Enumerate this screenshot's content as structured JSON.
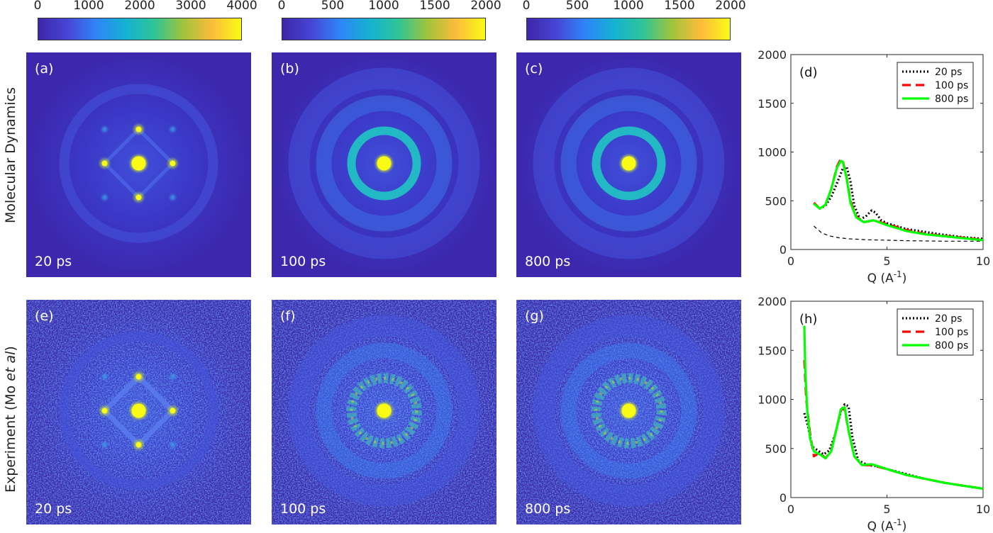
{
  "row_labels": {
    "top": "Molecular Dynamics",
    "bottom_main": "Experiment (Mo ",
    "bottom_italic": "et al",
    "bottom_end": ")"
  },
  "colorbars": [
    {
      "ticks": [
        "0",
        "1000",
        "2000",
        "3000",
        "4000"
      ]
    },
    {
      "ticks": [
        "0",
        "500",
        "1000",
        "1500",
        "2000"
      ]
    },
    {
      "ticks": [
        "0",
        "500",
        "1000",
        "1500",
        "2000"
      ]
    }
  ],
  "panels": [
    {
      "label": "(a)",
      "time": "20 ps",
      "kind": "bcc",
      "noise": false
    },
    {
      "label": "(b)",
      "time": "100 ps",
      "kind": "ring",
      "noise": false
    },
    {
      "label": "(c)",
      "time": "800 ps",
      "kind": "ring",
      "noise": false
    },
    {
      "label": "(e)",
      "time": "20 ps",
      "kind": "bcc",
      "noise": true
    },
    {
      "label": "(f)",
      "time": "100 ps",
      "kind": "ring",
      "noise": true
    },
    {
      "label": "(g)",
      "time": "800 ps",
      "kind": "ring",
      "noise": true
    }
  ],
  "colors": {
    "colormap": [
      "#3e26a8",
      "#4745d6",
      "#2e85f8",
      "#15b1d1",
      "#2ec597",
      "#9fc43c",
      "#fcbc3b",
      "#f9fb15"
    ],
    "series_20ps": "#000000",
    "series_100ps": "#ff0000",
    "series_800ps": "#00ff00"
  },
  "chart_data": [
    {
      "type": "line",
      "panel_label": "(d)",
      "xlabel": "Q (A",
      "xlabel_sup": "-1",
      "xlabel_end": ")",
      "xlim": [
        0,
        10
      ],
      "ylim": [
        0,
        2000
      ],
      "xticks": [
        "0",
        "5",
        "10"
      ],
      "yticks": [
        "0",
        "500",
        "1000",
        "1500",
        "2000"
      ],
      "legend_position": "top-right",
      "series": [
        {
          "name": "20 ps",
          "style": "dotted",
          "x": [
            1.2,
            1.5,
            1.8,
            2.1,
            2.4,
            2.7,
            2.9,
            3.1,
            3.3,
            3.6,
            3.9,
            4.2,
            4.4,
            4.7,
            5.0,
            6.0,
            7.0,
            8.0,
            9.0,
            10.0
          ],
          "y": [
            470,
            420,
            450,
            540,
            680,
            830,
            850,
            700,
            450,
            310,
            340,
            400,
            380,
            300,
            270,
            210,
            180,
            150,
            125,
            110
          ]
        },
        {
          "name": "100 ps",
          "style": "dashed",
          "x": [
            1.2,
            1.5,
            1.8,
            2.1,
            2.4,
            2.6,
            2.7,
            2.9,
            3.1,
            3.4,
            3.8,
            4.3,
            5.0,
            6.0,
            7.0,
            8.0,
            9.0,
            10.0
          ],
          "y": [
            480,
            420,
            460,
            620,
            850,
            930,
            910,
            740,
            500,
            340,
            280,
            300,
            260,
            200,
            160,
            140,
            120,
            100
          ]
        },
        {
          "name": "800 ps",
          "style": "solid",
          "x": [
            1.2,
            1.5,
            1.8,
            2.1,
            2.4,
            2.6,
            2.7,
            2.9,
            3.1,
            3.4,
            3.8,
            4.3,
            5.0,
            6.0,
            7.0,
            8.0,
            9.0,
            10.0
          ],
          "y": [
            470,
            420,
            460,
            620,
            840,
            910,
            900,
            730,
            480,
            330,
            280,
            300,
            250,
            190,
            155,
            135,
            115,
            95
          ]
        },
        {
          "name": "",
          "style": "thin-dashed",
          "x": [
            1.2,
            1.6,
            2.0,
            2.5,
            3.0,
            4.0,
            5.0,
            6.0,
            8.0,
            10.0
          ],
          "y": [
            240,
            170,
            140,
            120,
            110,
            100,
            95,
            90,
            85,
            85
          ]
        }
      ]
    },
    {
      "type": "line",
      "panel_label": "(h)",
      "xlabel": "Q (A",
      "xlabel_sup": "-1",
      "xlabel_end": ")",
      "xlim": [
        0,
        10
      ],
      "ylim": [
        0,
        2000
      ],
      "xticks": [
        "0",
        "5",
        "10"
      ],
      "yticks": [
        "0",
        "500",
        "1000",
        "1500",
        "2000"
      ],
      "legend_position": "top-right",
      "series": [
        {
          "name": "20 ps",
          "style": "dotted",
          "x": [
            0.7,
            0.9,
            1.1,
            1.4,
            1.7,
            2.0,
            2.3,
            2.6,
            2.8,
            3.0,
            3.2,
            3.5,
            4.0,
            4.5,
            5.0,
            6.0,
            7.0,
            8.0,
            9.0,
            10.0
          ],
          "y": [
            860,
            720,
            520,
            480,
            440,
            480,
            640,
            880,
            950,
            930,
            620,
            380,
            330,
            320,
            290,
            240,
            190,
            150,
            120,
            90
          ]
        },
        {
          "name": "100 ps",
          "style": "dashed",
          "x": [
            0.7,
            0.8,
            1.0,
            1.2,
            1.5,
            1.8,
            2.1,
            2.4,
            2.6,
            2.8,
            3.0,
            3.3,
            3.7,
            4.2,
            5.0,
            6.0,
            7.0,
            8.0,
            9.0,
            10.0
          ],
          "y": [
            1400,
            1000,
            650,
            420,
            460,
            400,
            480,
            720,
            900,
            900,
            680,
            420,
            330,
            330,
            290,
            230,
            190,
            150,
            120,
            90
          ]
        },
        {
          "name": "800 ps",
          "style": "solid",
          "x": [
            0.7,
            0.75,
            0.85,
            1.0,
            1.2,
            1.5,
            1.8,
            2.1,
            2.4,
            2.6,
            2.8,
            3.0,
            3.3,
            3.7,
            4.2,
            5.0,
            6.0,
            7.0,
            8.0,
            9.0,
            10.0
          ],
          "y": [
            1750,
            1300,
            900,
            600,
            470,
            440,
            400,
            470,
            720,
            900,
            920,
            680,
            420,
            330,
            340,
            290,
            230,
            190,
            150,
            120,
            90
          ]
        }
      ]
    }
  ]
}
